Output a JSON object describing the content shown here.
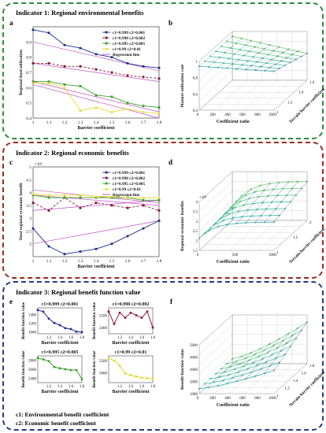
{
  "panel1": {
    "title": "Indicator 1: Regional environmental benefits"
  },
  "panel2": {
    "title": "Indicator 2: Regional economic benefits"
  },
  "panel3": {
    "title": "Indicator 3: Regional benefit function value"
  },
  "labels": {
    "a": "a",
    "b": "b",
    "c": "c",
    "d": "d",
    "e": "e",
    "f": "f"
  },
  "footnotes": {
    "c1": "c1: Environmental benefit coefficient",
    "c2": "c2: Economic benefit coefficient"
  },
  "colors": {
    "s1": "#1f2f8f",
    "s2": "#8b1a3a",
    "s3": "#3aa02a",
    "s4": "#e6d92e",
    "reg": "#c04fc8"
  },
  "chart_data": [
    {
      "id": "a",
      "type": "line",
      "xlabel": "Barrier coefficient",
      "ylabel": "Regional food utilization",
      "x": [
        1,
        1.1,
        1.2,
        1.3,
        1.4,
        1.5,
        1.6,
        1.7,
        1.8
      ],
      "xticks": [
        "1",
        "1.1",
        "1.2",
        "1.3",
        "1.4",
        "1.5",
        "1.6",
        "1.7",
        "1.8"
      ],
      "yticks": [
        "0.4",
        "0.5",
        "0.6",
        "0.7",
        "0.8",
        "0.9"
      ],
      "ylim": [
        0.4,
        1.0
      ],
      "series": [
        {
          "name": "c1=0.999  c2=0.001",
          "values": [
            0.98,
            0.96,
            0.88,
            0.86,
            0.82,
            0.8,
            0.76,
            0.74,
            0.73
          ]
        },
        {
          "name": "c1=0.998  c2=0.002",
          "values": [
            0.76,
            0.76,
            0.74,
            0.74,
            0.72,
            0.7,
            0.68,
            0.67,
            0.66
          ]
        },
        {
          "name": "c1=0.995  c2=0.005",
          "values": [
            0.64,
            0.64,
            0.62,
            0.61,
            0.55,
            0.54,
            0.5,
            0.48,
            0.47
          ]
        },
        {
          "name": "c1=0.99  c2=0.01",
          "values": [
            0.63,
            0.63,
            0.6,
            0.45,
            0.47,
            0.44,
            0.46,
            0.44,
            0.43
          ]
        }
      ],
      "regression": [
        [
          0.9,
          0.71
        ],
        [
          0.76,
          0.64
        ],
        [
          0.64,
          0.44
        ],
        [
          0.62,
          0.4
        ]
      ],
      "regression_name": "Regression line"
    },
    {
      "id": "c",
      "type": "line",
      "xlabel": "Barrier coefficient",
      "ylabel": "Total regional economic benefit",
      "x": [
        1,
        1.1,
        1.2,
        1.3,
        1.4,
        1.5,
        1.6,
        1.7,
        1.8
      ],
      "xticks": [
        "1",
        "1.1",
        "1.2",
        "1.3",
        "1.4",
        "1.5",
        "1.6",
        "1.7",
        "1.8"
      ],
      "yticks": [
        "2",
        "2.5",
        "3",
        "3.5",
        "4",
        "4.5",
        "5"
      ],
      "exponent": "×10⁵",
      "ylim": [
        1.5,
        5
      ],
      "series": [
        {
          "name": "c1=0.999  c2=0.001",
          "values": [
            2.6,
            1.9,
            1.6,
            1.7,
            1.8,
            2.0,
            2.3,
            2.6,
            2.9
          ]
        },
        {
          "name": "c1=0.998  c2=0.002",
          "values": [
            3.6,
            3.3,
            3.8,
            3.4,
            3.6,
            3.5,
            3.4,
            3.5,
            3.3
          ]
        },
        {
          "name": "c1=0.995  c2=0.005",
          "values": [
            3.9,
            3.8,
            3.8,
            3.8,
            3.8,
            3.8,
            3.8,
            3.7,
            3.7
          ]
        },
        {
          "name": "c1=0.99  c2=0.01",
          "values": [
            3.95,
            3.9,
            3.9,
            3.9,
            3.85,
            3.85,
            3.8,
            3.8,
            3.8
          ]
        }
      ],
      "regression": [
        [
          2.0,
          2.9
        ],
        [
          3.3,
          3.7
        ],
        [
          3.9,
          3.5
        ],
        [
          4.1,
          3.6
        ]
      ],
      "regression_name": "Regression line"
    },
    {
      "id": "e1",
      "type": "line",
      "title": "c1=0.999  c2=0.001",
      "color": "#1f2f8f",
      "ylabel": "Benefit function value",
      "xlabel": "Barrier coefficient",
      "xticks": [
        "1.2",
        "1.4",
        "1.6",
        "1.8"
      ],
      "yticks": [
        "1000",
        "1200",
        "1400"
      ],
      "ylim": [
        950,
        1550
      ],
      "x": [
        1,
        1.1,
        1.2,
        1.3,
        1.4,
        1.5,
        1.6,
        1.7,
        1.8
      ],
      "values": [
        1500,
        1460,
        1300,
        1200,
        1150,
        1080,
        1060,
        1000,
        990
      ]
    },
    {
      "id": "e2",
      "type": "line",
      "title": "c1=0.998  c2=0.002",
      "color": "#8b1a3a",
      "ylabel": "Benefit function value",
      "xlabel": "Barrier coefficient",
      "xticks": [
        "1.2",
        "1.4",
        "1.6",
        "1.8"
      ],
      "yticks": [
        "2400",
        "2500"
      ],
      "ylim": [
        2350,
        2560
      ],
      "x": [
        1,
        1.1,
        1.2,
        1.3,
        1.4,
        1.5,
        1.6,
        1.7,
        1.8
      ],
      "values": [
        2530,
        2430,
        2520,
        2480,
        2520,
        2500,
        2480,
        2530,
        2400
      ]
    },
    {
      "id": "e3",
      "type": "line",
      "title": "c1=0.995  c2=0.005",
      "color": "#3aa02a",
      "ylabel": "Benefit function value",
      "xlabel": "Barrier coefficient",
      "xticks": [
        "1.2",
        "1.4",
        "1.6",
        "1.8"
      ],
      "yticks": [
        "2400",
        "2600",
        "2800"
      ],
      "ylim": [
        2300,
        2900
      ],
      "x": [
        1,
        1.1,
        1.2,
        1.3,
        1.4,
        1.5,
        1.6,
        1.7,
        1.8
      ],
      "values": [
        2850,
        2820,
        2780,
        2650,
        2620,
        2600,
        2580,
        2580,
        2380
      ]
    },
    {
      "id": "e4",
      "type": "line",
      "title": "c1=0.99  c2=0.01",
      "color": "#e6d92e",
      "ylabel": "Benefit function value",
      "xlabel": "Barrier coefficient",
      "xticks": [
        "1.2",
        "1.4",
        "1.6",
        "1.8"
      ],
      "yticks": [
        "5000",
        "5500"
      ],
      "ylim": [
        4600,
        5700
      ],
      "x": [
        1,
        1.1,
        1.2,
        1.3,
        1.4,
        1.5,
        1.6,
        1.7,
        1.8
      ],
      "values": [
        5600,
        5500,
        5300,
        4980,
        4900,
        4850,
        4800,
        4780,
        4750
      ]
    },
    {
      "id": "b",
      "type": "surface3d",
      "xlabel": "Coefficient ratio",
      "ylabel": "Terrain barrier coefficient",
      "zlabel": "Manure utilization rate",
      "xticks": [
        "0",
        "200",
        "400",
        "600",
        "800",
        "1000"
      ],
      "yticks": [
        "1",
        "1.2",
        "1.4",
        "1.6"
      ],
      "zticks": [
        "0.4",
        "0.6",
        "0.8",
        "1"
      ]
    },
    {
      "id": "d",
      "type": "surface3d",
      "xlabel": "Coefficient ratio",
      "ylabel": "Terrain barrier coefficient",
      "zlabel": "Regional economic benefits",
      "exponent": "×10⁵",
      "xticks": [
        "0",
        "500",
        "1000"
      ],
      "yticks": [
        "1",
        "1.5",
        "2"
      ],
      "zticks": [
        "1.5",
        "2",
        "2.5",
        "3",
        "3.5",
        "4"
      ]
    },
    {
      "id": "f",
      "type": "surface3d",
      "xlabel": "Coefficient ratio",
      "ylabel": "Terrain barrier coefficient",
      "zlabel": "Benefit function value",
      "xticks": [
        "0",
        "200",
        "400",
        "600",
        "800",
        "1000"
      ],
      "yticks": [
        "1",
        "1.2",
        "1.4",
        "1.6",
        "1.8"
      ],
      "zticks": [
        "1000",
        "2000",
        "3000",
        "4000",
        "5000"
      ]
    }
  ]
}
